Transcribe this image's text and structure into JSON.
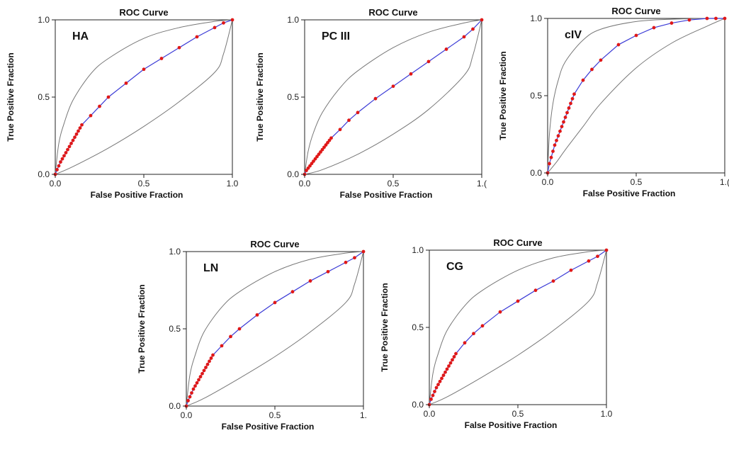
{
  "chart_data": [
    {
      "type": "line",
      "title": "ROC Curve",
      "panel_label": "HA",
      "xlabel": "False Positive Fraction",
      "ylabel": "True Positive Fraction",
      "xlim": [
        0,
        1
      ],
      "ylim": [
        0,
        1
      ],
      "x_ticks": [
        "0.0",
        "0.5",
        "1.0"
      ],
      "y_ticks": [
        "0.0",
        "0.5",
        "1.0"
      ],
      "grid": false,
      "series": [
        {
          "x": [
            0,
            0.01,
            0.02,
            0.03,
            0.04,
            0.05,
            0.06,
            0.07,
            0.08,
            0.09,
            0.1,
            0.11,
            0.12,
            0.13,
            0.14,
            0.15,
            0.2,
            0.25,
            0.3,
            0.4,
            0.5,
            0.6,
            0.7,
            0.8,
            0.9,
            0.95,
            1.0
          ],
          "y": [
            0,
            0.03,
            0.055,
            0.08,
            0.1,
            0.12,
            0.14,
            0.16,
            0.18,
            0.2,
            0.22,
            0.24,
            0.26,
            0.28,
            0.3,
            0.32,
            0.38,
            0.44,
            0.5,
            0.59,
            0.68,
            0.75,
            0.82,
            0.89,
            0.95,
            0.98,
            1.0
          ]
        }
      ],
      "confidence_band": {
        "upper": {
          "x": [
            0,
            0.02,
            0.05,
            0.1,
            0.2,
            0.3,
            0.5,
            0.7,
            0.9,
            1.0
          ],
          "y": [
            0,
            0.2,
            0.33,
            0.48,
            0.65,
            0.75,
            0.88,
            0.95,
            0.99,
            1.0
          ]
        },
        "lower": {
          "x": [
            0,
            0.1,
            0.3,
            0.5,
            0.7,
            0.9,
            0.95,
            1.0
          ],
          "y": [
            0,
            0.05,
            0.17,
            0.31,
            0.47,
            0.66,
            0.78,
            1.0
          ]
        }
      }
    },
    {
      "type": "line",
      "title": "ROC Curve",
      "panel_label": "PC III",
      "xlabel": "False Positive Fraction",
      "ylabel": "True Positive Fraction",
      "xlim": [
        0,
        1
      ],
      "ylim": [
        0,
        1
      ],
      "x_ticks": [
        "0.0",
        "0.5",
        "1.("
      ],
      "y_ticks": [
        "0.0",
        "0.5",
        "1.0"
      ],
      "grid": false,
      "series": [
        {
          "x": [
            0,
            0.01,
            0.02,
            0.03,
            0.04,
            0.05,
            0.06,
            0.07,
            0.08,
            0.09,
            0.1,
            0.11,
            0.12,
            0.13,
            0.14,
            0.15,
            0.2,
            0.25,
            0.3,
            0.4,
            0.5,
            0.6,
            0.7,
            0.8,
            0.9,
            0.95,
            1.0
          ],
          "y": [
            0,
            0.025,
            0.04,
            0.055,
            0.07,
            0.085,
            0.1,
            0.115,
            0.13,
            0.145,
            0.16,
            0.175,
            0.19,
            0.205,
            0.22,
            0.235,
            0.29,
            0.35,
            0.4,
            0.49,
            0.57,
            0.65,
            0.73,
            0.81,
            0.89,
            0.94,
            1.0
          ]
        }
      ],
      "confidence_band": {
        "upper": {
          "x": [
            0,
            0.02,
            0.05,
            0.1,
            0.2,
            0.3,
            0.5,
            0.7,
            0.9,
            1.0
          ],
          "y": [
            0,
            0.15,
            0.27,
            0.4,
            0.56,
            0.67,
            0.82,
            0.92,
            0.98,
            1.0
          ]
        },
        "lower": {
          "x": [
            0,
            0.1,
            0.3,
            0.5,
            0.7,
            0.9,
            0.95,
            1.0
          ],
          "y": [
            0,
            0.03,
            0.13,
            0.26,
            0.42,
            0.64,
            0.77,
            1.0
          ]
        }
      }
    },
    {
      "type": "line",
      "title": "ROC Curve",
      "panel_label": "cIV",
      "xlabel": "False Positive Fraction",
      "ylabel": "True Positive Fraction",
      "xlim": [
        0,
        1
      ],
      "ylim": [
        0,
        1
      ],
      "x_ticks": [
        "0.0",
        "0.5",
        "1.("
      ],
      "y_ticks": [
        "0.0",
        "0.5",
        "1.0"
      ],
      "grid": false,
      "series": [
        {
          "x": [
            0,
            0.01,
            0.02,
            0.03,
            0.04,
            0.05,
            0.06,
            0.07,
            0.08,
            0.09,
            0.1,
            0.11,
            0.12,
            0.13,
            0.14,
            0.15,
            0.2,
            0.25,
            0.3,
            0.4,
            0.5,
            0.6,
            0.7,
            0.8,
            0.9,
            0.95,
            1.0
          ],
          "y": [
            0,
            0.06,
            0.1,
            0.14,
            0.18,
            0.21,
            0.24,
            0.27,
            0.3,
            0.33,
            0.36,
            0.39,
            0.42,
            0.45,
            0.48,
            0.51,
            0.6,
            0.67,
            0.73,
            0.83,
            0.89,
            0.94,
            0.97,
            0.99,
            1.0,
            1.0,
            1.0
          ]
        }
      ],
      "confidence_band": {
        "upper": {
          "x": [
            0,
            0.01,
            0.03,
            0.06,
            0.1,
            0.2,
            0.3,
            0.5,
            0.7,
            0.9,
            1.0
          ],
          "y": [
            0,
            0.25,
            0.45,
            0.6,
            0.72,
            0.86,
            0.93,
            0.98,
            0.995,
            1.0,
            1.0
          ]
        },
        "lower": {
          "x": [
            0,
            0.05,
            0.1,
            0.2,
            0.3,
            0.5,
            0.7,
            0.9,
            1.0
          ],
          "y": [
            0,
            0.07,
            0.15,
            0.3,
            0.45,
            0.68,
            0.84,
            0.95,
            1.0
          ]
        }
      }
    },
    {
      "type": "line",
      "title": "ROC Curve",
      "panel_label": "LN",
      "xlabel": "False Positive Fraction",
      "ylabel": "True Positive Fraction",
      "xlim": [
        0,
        1
      ],
      "ylim": [
        0,
        1
      ],
      "x_ticks": [
        "0.0",
        "0.5",
        "1."
      ],
      "y_ticks": [
        "0.0",
        "0.5",
        "1.0"
      ],
      "grid": false,
      "series": [
        {
          "x": [
            0,
            0.01,
            0.02,
            0.03,
            0.04,
            0.05,
            0.06,
            0.07,
            0.08,
            0.09,
            0.1,
            0.11,
            0.12,
            0.13,
            0.14,
            0.15,
            0.2,
            0.25,
            0.3,
            0.4,
            0.5,
            0.6,
            0.7,
            0.8,
            0.9,
            0.95,
            1.0
          ],
          "y": [
            0,
            0.035,
            0.06,
            0.085,
            0.11,
            0.13,
            0.15,
            0.17,
            0.19,
            0.21,
            0.23,
            0.25,
            0.27,
            0.29,
            0.31,
            0.33,
            0.39,
            0.45,
            0.5,
            0.59,
            0.67,
            0.74,
            0.81,
            0.87,
            0.93,
            0.96,
            1.0
          ]
        }
      ],
      "confidence_band": {
        "upper": {
          "x": [
            0,
            0.02,
            0.05,
            0.1,
            0.2,
            0.3,
            0.5,
            0.7,
            0.9,
            1.0
          ],
          "y": [
            0,
            0.2,
            0.33,
            0.48,
            0.64,
            0.74,
            0.87,
            0.95,
            0.99,
            1.0
          ]
        },
        "lower": {
          "x": [
            0,
            0.1,
            0.3,
            0.5,
            0.7,
            0.9,
            0.95,
            1.0
          ],
          "y": [
            0,
            0.05,
            0.18,
            0.32,
            0.48,
            0.67,
            0.79,
            1.0
          ]
        }
      }
    },
    {
      "type": "line",
      "title": "ROC Curve",
      "panel_label": "CG",
      "xlabel": "False Positive Fraction",
      "ylabel": "True Positive Fraction",
      "xlim": [
        0,
        1
      ],
      "ylim": [
        0,
        1
      ],
      "x_ticks": [
        "0.0",
        "0.5",
        "1.0"
      ],
      "y_ticks": [
        "0.0",
        "0.5",
        "1.0"
      ],
      "grid": false,
      "series": [
        {
          "x": [
            0,
            0.01,
            0.02,
            0.03,
            0.04,
            0.05,
            0.06,
            0.07,
            0.08,
            0.09,
            0.1,
            0.11,
            0.12,
            0.13,
            0.14,
            0.15,
            0.2,
            0.25,
            0.3,
            0.4,
            0.5,
            0.6,
            0.7,
            0.8,
            0.9,
            0.95,
            1.0
          ],
          "y": [
            0,
            0.035,
            0.06,
            0.085,
            0.11,
            0.13,
            0.15,
            0.17,
            0.19,
            0.21,
            0.23,
            0.25,
            0.27,
            0.29,
            0.31,
            0.33,
            0.4,
            0.46,
            0.51,
            0.6,
            0.67,
            0.74,
            0.8,
            0.87,
            0.93,
            0.96,
            1.0
          ]
        }
      ],
      "confidence_band": {
        "upper": {
          "x": [
            0,
            0.02,
            0.05,
            0.1,
            0.2,
            0.3,
            0.5,
            0.7,
            0.9,
            1.0
          ],
          "y": [
            0,
            0.2,
            0.33,
            0.48,
            0.64,
            0.74,
            0.87,
            0.95,
            0.99,
            1.0
          ]
        },
        "lower": {
          "x": [
            0,
            0.1,
            0.3,
            0.5,
            0.7,
            0.9,
            0.95,
            1.0
          ],
          "y": [
            0,
            0.05,
            0.18,
            0.32,
            0.48,
            0.67,
            0.79,
            1.0
          ]
        }
      }
    }
  ],
  "colors": {
    "curve": "#3b3bd6",
    "points": "#e01818",
    "band": "#777777",
    "frame": "#222222"
  }
}
